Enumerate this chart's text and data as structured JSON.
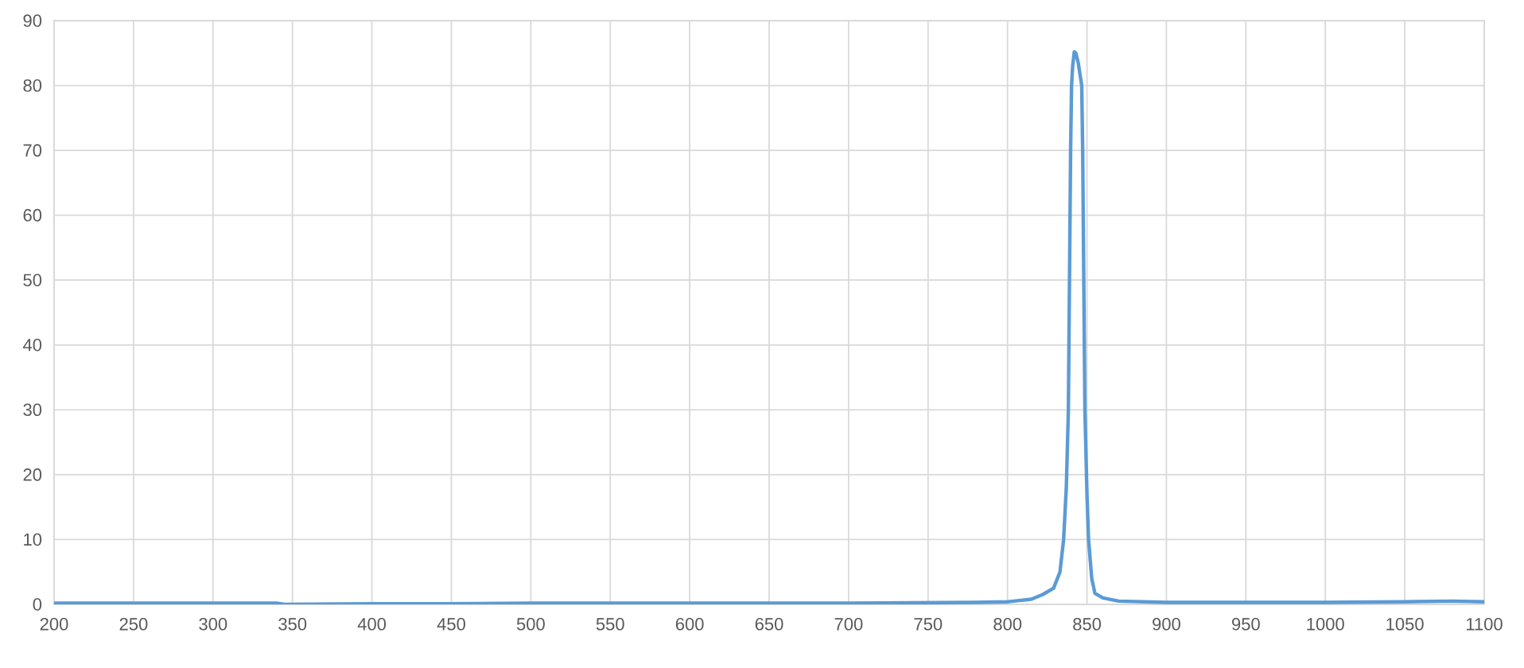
{
  "chart_data": {
    "type": "line",
    "x": [
      200,
      250,
      300,
      340,
      345,
      400,
      450,
      500,
      600,
      700,
      780,
      800,
      815,
      822,
      829,
      833,
      835.3,
      837,
      838.3,
      839,
      839.7,
      840.3,
      841,
      842,
      843,
      844.5,
      846.7,
      847.3,
      848,
      848.7,
      850,
      851,
      853,
      855,
      860,
      870,
      900,
      1000,
      1050,
      1080,
      1100
    ],
    "values": [
      0.2,
      0.2,
      0.2,
      0.2,
      0.0,
      0.1,
      0.1,
      0.2,
      0.2,
      0.2,
      0.3,
      0.4,
      0.8,
      1.5,
      2.5,
      5,
      10,
      18,
      30,
      50,
      70,
      80,
      83,
      85.2,
      85,
      83.5,
      80,
      70,
      50,
      30,
      17,
      10,
      4,
      1.7,
      1,
      0.5,
      0.3,
      0.3,
      0.4,
      0.5,
      0.4
    ],
    "color": "#5b9bd5",
    "xlim": [
      200,
      1100
    ],
    "ylim": [
      0,
      90
    ],
    "xticks": [
      200,
      250,
      300,
      350,
      400,
      450,
      500,
      550,
      600,
      650,
      700,
      750,
      800,
      850,
      900,
      950,
      1000,
      1050,
      1100
    ],
    "yticks": [
      0,
      10,
      20,
      30,
      40,
      50,
      60,
      70,
      80,
      90
    ],
    "grid": true,
    "marker": "none",
    "line_style": "solid"
  }
}
